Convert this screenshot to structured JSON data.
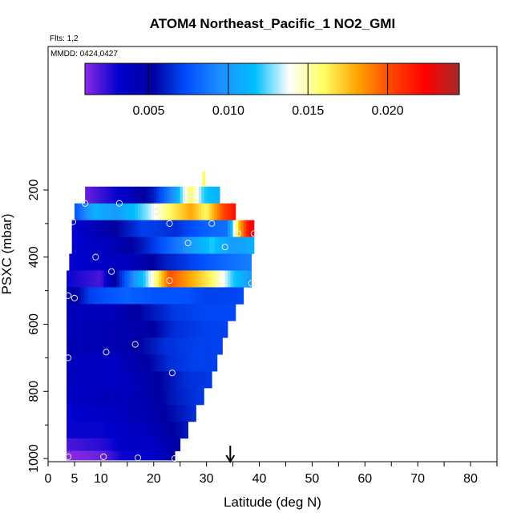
{
  "chart_data": {
    "type": "heatmap",
    "title": "ATOM4 Northeast_Pacific_1 NO2_GMI",
    "flights_note": "Flts: 1,2",
    "date_note": "MMDD: 0424,0427",
    "xlabel": "Latitude (deg N)",
    "ylabel": "PSXC (mbar)",
    "xlim": [
      0,
      85
    ],
    "ylim": [
      1000,
      120
    ],
    "y_inverted": true,
    "x_ticks": [
      0,
      5,
      10,
      20,
      30,
      40,
      50,
      60,
      70,
      80
    ],
    "y_ticks": [
      200,
      400,
      600,
      800,
      1000
    ],
    "grid": false,
    "colorbar": {
      "vmin": 0.001,
      "vmax": 0.0245,
      "ticks": [
        0.005,
        0.01,
        0.015,
        0.02
      ],
      "tick_labels": [
        "0.005",
        "0.010",
        "0.015",
        "0.020"
      ],
      "colors": [
        "#8a2be2",
        "#0000cd",
        "#0000a0",
        "#0050ff",
        "#1e90ff",
        "#00bfff",
        "#ffffff",
        "#ffff66",
        "#ffa500",
        "#ff4500",
        "#ff0000",
        "#a52a2a"
      ]
    },
    "arrow_marker_lat": 34.5,
    "rows": [
      {
        "p": 215,
        "lat_start": 7,
        "lat_end": 32.5,
        "stops": [
          [
            7,
            0.0015
          ],
          [
            13,
            0.003
          ],
          [
            20,
            0.006
          ],
          [
            24,
            0.01
          ],
          [
            27,
            0.016
          ],
          [
            29.5,
            0.012
          ],
          [
            32.5,
            0.011
          ]
        ]
      },
      {
        "p": 265,
        "lat_start": 5,
        "lat_end": 35.5,
        "stops": [
          [
            5,
            0.0075
          ],
          [
            9,
            0.011
          ],
          [
            13,
            0.01
          ],
          [
            19,
            0.013
          ],
          [
            23,
            0.016
          ],
          [
            27,
            0.018
          ],
          [
            30,
            0.016
          ],
          [
            33,
            0.02
          ],
          [
            35.5,
            0.022
          ]
        ]
      },
      {
        "p": 315,
        "lat_start": 4.5,
        "lat_end": 39,
        "stops": [
          [
            4.5,
            0.003
          ],
          [
            12,
            0.005
          ],
          [
            18,
            0.007
          ],
          [
            24,
            0.0065
          ],
          [
            30,
            0.008
          ],
          [
            34,
            0.0085
          ],
          [
            36,
            0.017
          ],
          [
            38,
            0.022
          ],
          [
            39,
            0.023
          ]
        ]
      },
      {
        "p": 365,
        "lat_start": 4.5,
        "lat_end": 39,
        "stops": [
          [
            4.5,
            0.003
          ],
          [
            12,
            0.004
          ],
          [
            18,
            0.006
          ],
          [
            25,
            0.009
          ],
          [
            31,
            0.012
          ],
          [
            35,
            0.01
          ],
          [
            39,
            0.011
          ]
        ]
      },
      {
        "p": 415,
        "lat_start": 4,
        "lat_end": 38.5,
        "stops": [
          [
            4,
            0.003
          ],
          [
            10,
            0.0035
          ],
          [
            16,
            0.004
          ],
          [
            22,
            0.006
          ],
          [
            27,
            0.007
          ],
          [
            32,
            0.008
          ],
          [
            38.5,
            0.009
          ]
        ]
      },
      {
        "p": 465,
        "lat_start": 3.5,
        "lat_end": 38.5,
        "stops": [
          [
            3.5,
            0.003
          ],
          [
            10,
            0.002
          ],
          [
            15,
            0.008
          ],
          [
            19,
            0.013
          ],
          [
            23,
            0.02
          ],
          [
            27,
            0.018
          ],
          [
            31,
            0.016
          ],
          [
            35,
            0.012
          ],
          [
            38.5,
            0.01
          ]
        ]
      },
      {
        "p": 515,
        "lat_start": 3.5,
        "lat_end": 37,
        "stops": [
          [
            3.5,
            0.004
          ],
          [
            8,
            0.007
          ],
          [
            15,
            0.008
          ],
          [
            20,
            0.0075
          ],
          [
            26,
            0.0075
          ],
          [
            30,
            0.007
          ],
          [
            37,
            0.0072
          ]
        ]
      },
      {
        "p": 565,
        "lat_start": 3.5,
        "lat_end": 35.5,
        "stops": [
          [
            3.5,
            0.004
          ],
          [
            12,
            0.004
          ],
          [
            18,
            0.0055
          ],
          [
            24,
            0.0068
          ],
          [
            30,
            0.0072
          ],
          [
            35.5,
            0.0072
          ]
        ]
      },
      {
        "p": 615,
        "lat_start": 3.5,
        "lat_end": 34,
        "stops": [
          [
            3.5,
            0.004
          ],
          [
            14,
            0.0045
          ],
          [
            19,
            0.005
          ],
          [
            24,
            0.0065
          ],
          [
            30,
            0.007
          ],
          [
            34,
            0.007
          ]
        ]
      },
      {
        "p": 665,
        "lat_start": 3.5,
        "lat_end": 33,
        "stops": [
          [
            3.5,
            0.0045
          ],
          [
            10,
            0.004
          ],
          [
            16,
            0.005
          ],
          [
            22,
            0.0065
          ],
          [
            28,
            0.007
          ],
          [
            33,
            0.007
          ]
        ]
      },
      {
        "p": 715,
        "lat_start": 3.5,
        "lat_end": 32,
        "stops": [
          [
            3.5,
            0.004
          ],
          [
            12,
            0.0035
          ],
          [
            18,
            0.005
          ],
          [
            23,
            0.0065
          ],
          [
            28,
            0.007
          ],
          [
            32,
            0.007
          ]
        ]
      },
      {
        "p": 765,
        "lat_start": 3.5,
        "lat_end": 31,
        "stops": [
          [
            3.5,
            0.004
          ],
          [
            12,
            0.0035
          ],
          [
            18,
            0.0045
          ],
          [
            22,
            0.0055
          ],
          [
            26,
            0.0065
          ],
          [
            31,
            0.0068
          ]
        ]
      },
      {
        "p": 815,
        "lat_start": 3.5,
        "lat_end": 29.5,
        "stops": [
          [
            3.5,
            0.0035
          ],
          [
            10,
            0.004
          ],
          [
            16,
            0.004
          ],
          [
            20,
            0.005
          ],
          [
            25,
            0.0062
          ],
          [
            29.5,
            0.0068
          ]
        ]
      },
      {
        "p": 865,
        "lat_start": 3.5,
        "lat_end": 28,
        "stops": [
          [
            3.5,
            0.003
          ],
          [
            10,
            0.0035
          ],
          [
            15,
            0.004
          ],
          [
            19,
            0.0045
          ],
          [
            23,
            0.0055
          ],
          [
            28,
            0.0065
          ]
        ]
      },
      {
        "p": 915,
        "lat_start": 3.5,
        "lat_end": 26.5,
        "stops": [
          [
            3.5,
            0.003
          ],
          [
            10,
            0.003
          ],
          [
            15,
            0.0035
          ],
          [
            19,
            0.004
          ],
          [
            23,
            0.005
          ],
          [
            26.5,
            0.006
          ]
        ]
      },
      {
        "p": 965,
        "lat_start": 3.5,
        "lat_end": 25,
        "stops": [
          [
            3.5,
            0.002
          ],
          [
            10,
            0.0025
          ],
          [
            15,
            0.0035
          ],
          [
            19,
            0.0035
          ],
          [
            23,
            0.0045
          ],
          [
            25,
            0.0055
          ]
        ]
      },
      {
        "p": 990,
        "lat_start": 3.5,
        "lat_end": 24,
        "stops": [
          [
            3.5,
            0.001
          ],
          [
            10,
            0.0015
          ],
          [
            14,
            0.003
          ],
          [
            18,
            0.003
          ],
          [
            22,
            0.004
          ],
          [
            24,
            0.005
          ]
        ]
      }
    ],
    "spike": {
      "lat": 29.5,
      "p_top": 145,
      "p_bottom": 190,
      "value": 0.016
    },
    "observations": [
      {
        "lat": 7,
        "p": 240
      },
      {
        "lat": 13.5,
        "p": 240
      },
      {
        "lat": 27,
        "p": 218
      },
      {
        "lat": 20.5,
        "p": 265
      },
      {
        "lat": 4.7,
        "p": 295
      },
      {
        "lat": 23,
        "p": 300
      },
      {
        "lat": 31,
        "p": 300
      },
      {
        "lat": 36,
        "p": 330
      },
      {
        "lat": 39,
        "p": 330
      },
      {
        "lat": 26.5,
        "p": 358
      },
      {
        "lat": 33.5,
        "p": 370
      },
      {
        "lat": 9,
        "p": 400
      },
      {
        "lat": 12,
        "p": 443
      },
      {
        "lat": 23,
        "p": 470
      },
      {
        "lat": 38.5,
        "p": 478
      },
      {
        "lat": 3.8,
        "p": 515
      },
      {
        "lat": 5,
        "p": 522
      },
      {
        "lat": 16.5,
        "p": 660
      },
      {
        "lat": 11,
        "p": 683
      },
      {
        "lat": 3.8,
        "p": 700
      },
      {
        "lat": 23.5,
        "p": 745
      },
      {
        "lat": 3.8,
        "p": 995
      },
      {
        "lat": 10.5,
        "p": 995
      },
      {
        "lat": 17,
        "p": 998
      },
      {
        "lat": 24,
        "p": 1000
      }
    ]
  }
}
